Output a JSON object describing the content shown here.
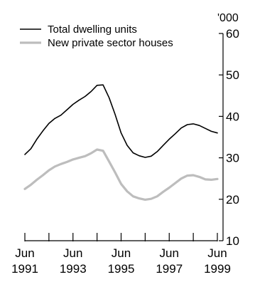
{
  "chart_data": {
    "type": "line",
    "title": "",
    "xlabel": "",
    "ylabel": "'000",
    "ylim": [
      10,
      60
    ],
    "xlim": [
      "1991-06",
      "1999-06"
    ],
    "yticks": [
      10,
      20,
      30,
      40,
      50,
      60
    ],
    "xtick_labels": [
      {
        "month": "Jun",
        "year": "1991"
      },
      {
        "month": "Jun",
        "year": "1993"
      },
      {
        "month": "Jun",
        "year": "1995"
      },
      {
        "month": "Jun",
        "year": "1997"
      },
      {
        "month": "Jun",
        "year": "1999"
      }
    ],
    "grid": false,
    "legend": "top-left",
    "x": [
      "1991-06",
      "1991-09",
      "1991-12",
      "1992-03",
      "1992-06",
      "1992-09",
      "1992-12",
      "1993-03",
      "1993-06",
      "1993-09",
      "1993-12",
      "1994-03",
      "1994-06",
      "1994-09",
      "1994-12",
      "1995-03",
      "1995-06",
      "1995-09",
      "1995-12",
      "1996-03",
      "1996-06",
      "1996-09",
      "1996-12",
      "1997-03",
      "1997-06",
      "1997-09",
      "1997-12",
      "1998-03",
      "1998-06",
      "1998-09",
      "1998-12",
      "1999-03",
      "1999-06"
    ],
    "series": [
      {
        "name": "Total dwelling units",
        "color": "#000000",
        "values": [
          30.8,
          32.2,
          34.5,
          36.5,
          38.3,
          39.5,
          40.3,
          41.6,
          42.9,
          43.9,
          44.8,
          46.0,
          47.5,
          47.6,
          44.5,
          40.5,
          36.0,
          33.0,
          31.2,
          30.5,
          30.1,
          30.4,
          31.5,
          33.0,
          34.5,
          35.8,
          37.2,
          38.0,
          38.2,
          37.8,
          37.1,
          36.4,
          36.0
        ]
      },
      {
        "name": "New private sector houses",
        "color": "#bdbdbd",
        "values": [
          22.5,
          23.5,
          24.7,
          25.8,
          27.0,
          27.9,
          28.5,
          29.0,
          29.6,
          30.0,
          30.4,
          31.1,
          32.0,
          31.7,
          29.1,
          26.5,
          23.7,
          21.9,
          20.7,
          20.2,
          19.9,
          20.1,
          20.7,
          21.8,
          22.8,
          23.9,
          25.0,
          25.7,
          25.8,
          25.4,
          24.8,
          24.7,
          24.9
        ]
      }
    ]
  }
}
